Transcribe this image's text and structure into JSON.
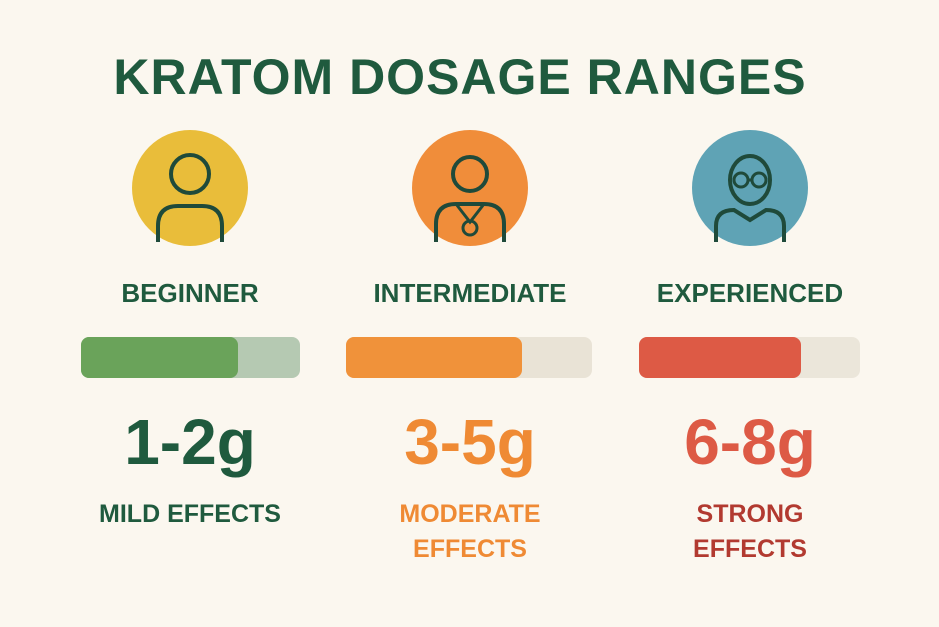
{
  "header": {
    "title": "KRATOM DOSAGE RANGES"
  },
  "levels": [
    {
      "label": "BEGINNER",
      "dose": "1-2g",
      "effect_lines": [
        "MILD EFFECTS"
      ]
    },
    {
      "label": "INTERMEDIATE",
      "dose": "3-5g",
      "effect_lines": [
        "MODERATE",
        "EFFECTS"
      ]
    },
    {
      "label": "EXPERIENCED",
      "dose": "6-8g",
      "effect_lines": [
        "STRONG",
        "EFFECTS"
      ]
    }
  ]
}
